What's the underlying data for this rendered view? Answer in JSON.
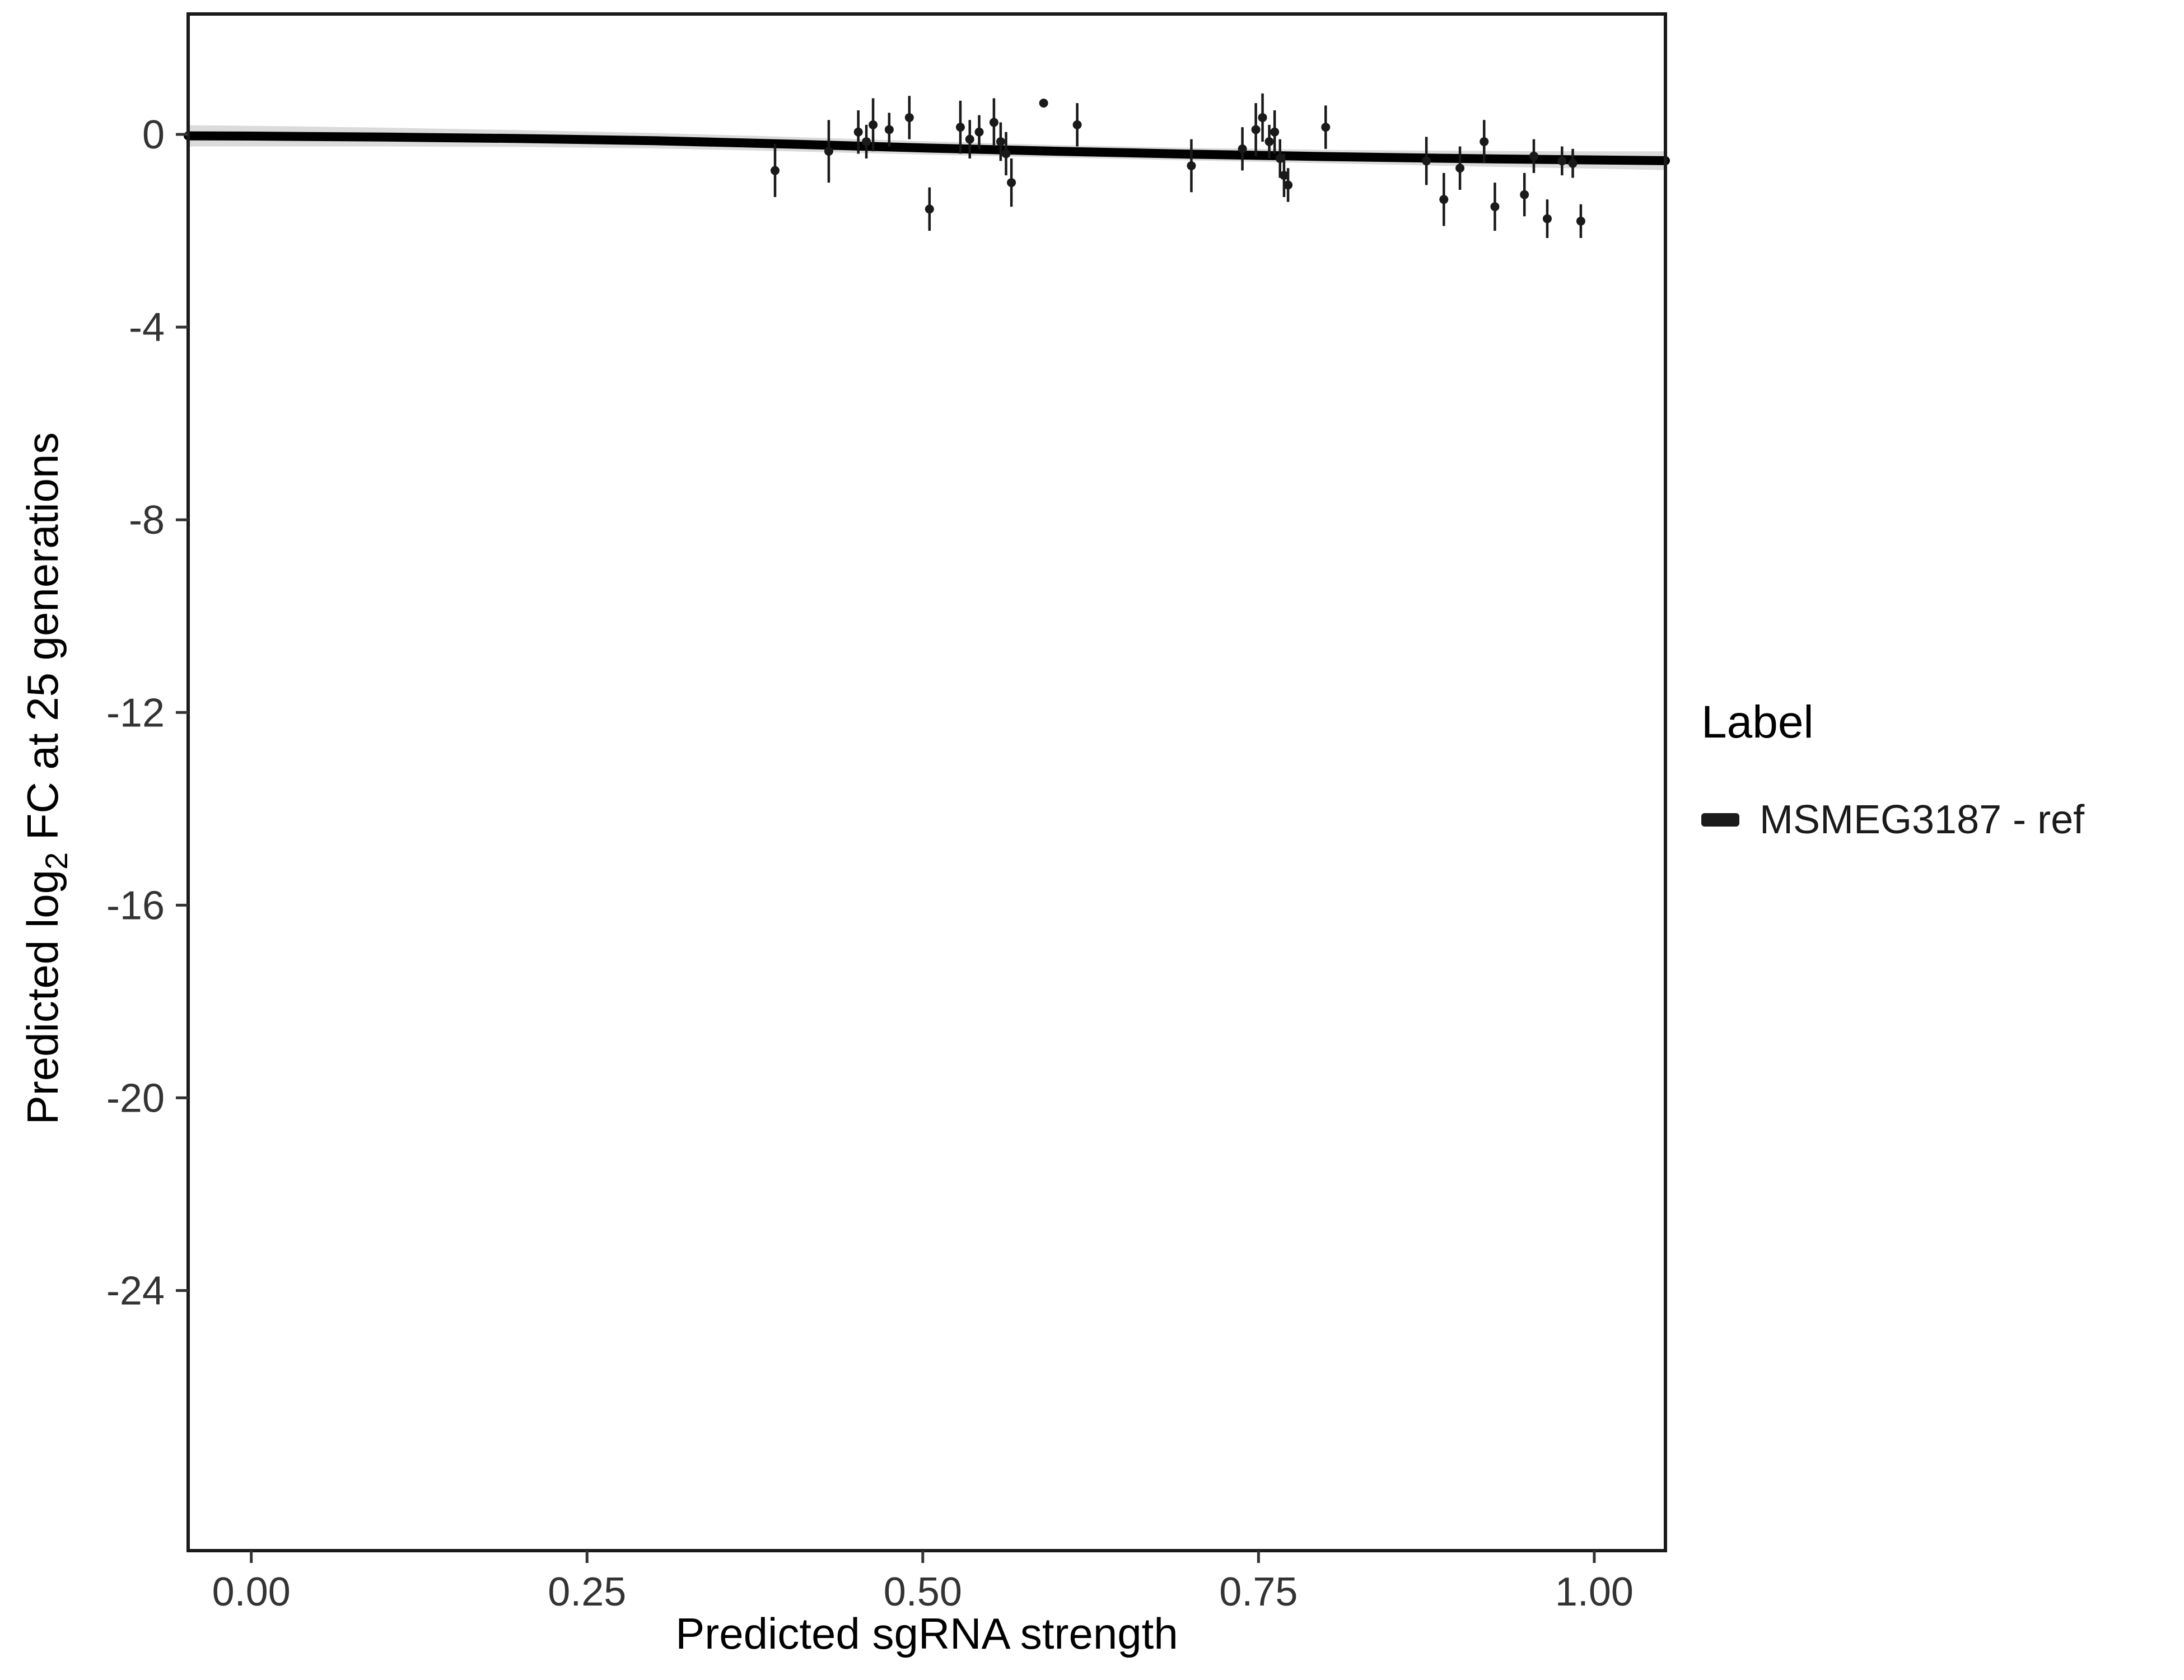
{
  "chart_data": {
    "type": "scatter",
    "title": "",
    "xlabel": "Predicted sgRNA strength",
    "ylabel": "Predicted log2 FC at 25 generations",
    "ylabel_parts": {
      "pre": "Predicted  log",
      "sub": "2",
      "post": " FC at 25 generations"
    },
    "xlim": [
      -0.047,
      1.053
    ],
    "ylim": [
      -29.4,
      2.5
    ],
    "x_ticks": [
      "0.00",
      "0.25",
      "0.50",
      "0.75",
      "1.00"
    ],
    "x_tick_values": [
      0,
      0.25,
      0.5,
      0.75,
      1
    ],
    "y_ticks": [
      "0",
      "-4",
      "-8",
      "-12",
      "-16",
      "-20",
      "-24"
    ],
    "y_tick_values": [
      0,
      -4,
      -8,
      -12,
      -16,
      -20,
      -24
    ],
    "grid": false,
    "background": "#ffffff",
    "panel_border_color": "#1a1a1a",
    "tick_color": "#333333",
    "point_color": "#1a1a1a",
    "legend": {
      "title": "Label",
      "position": "right",
      "entries": [
        {
          "label": "MSMEG3187 - ref",
          "swatch_color": "#1a1a1a"
        }
      ]
    },
    "series_name": "MSMEG3187 - ref",
    "points": [
      [
        0.39,
        -0.75,
        0.55
      ],
      [
        0.43,
        -0.35,
        0.65
      ],
      [
        0.452,
        0.05,
        0.45
      ],
      [
        0.458,
        -0.15,
        0.35
      ],
      [
        0.463,
        0.2,
        0.55
      ],
      [
        0.475,
        0.1,
        0.35
      ],
      [
        0.49,
        0.35,
        0.45
      ],
      [
        0.505,
        -1.55,
        0.45
      ],
      [
        0.528,
        0.15,
        0.55
      ],
      [
        0.535,
        -0.1,
        0.4
      ],
      [
        0.542,
        0.05,
        0.35
      ],
      [
        0.553,
        0.25,
        0.5
      ],
      [
        0.558,
        -0.15,
        0.4
      ],
      [
        0.562,
        -0.4,
        0.45
      ],
      [
        0.566,
        -1.0,
        0.5
      ],
      [
        0.59,
        0.65,
        0.08
      ],
      [
        0.615,
        0.2,
        0.45
      ],
      [
        0.7,
        -0.65,
        0.55
      ],
      [
        0.738,
        -0.3,
        0.45
      ],
      [
        0.748,
        0.1,
        0.55
      ],
      [
        0.753,
        0.35,
        0.5
      ],
      [
        0.758,
        -0.15,
        0.35
      ],
      [
        0.762,
        0.05,
        0.45
      ],
      [
        0.766,
        -0.5,
        0.4
      ],
      [
        0.769,
        -0.85,
        0.45
      ],
      [
        0.772,
        -1.05,
        0.35
      ],
      [
        0.8,
        0.15,
        0.45
      ],
      [
        0.875,
        -0.55,
        0.5
      ],
      [
        0.888,
        -1.35,
        0.55
      ],
      [
        0.9,
        -0.7,
        0.45
      ],
      [
        0.918,
        -0.15,
        0.45
      ],
      [
        0.926,
        -1.5,
        0.5
      ],
      [
        0.948,
        -1.25,
        0.45
      ],
      [
        0.955,
        -0.45,
        0.35
      ],
      [
        0.965,
        -1.75,
        0.4
      ],
      [
        0.976,
        -0.55,
        0.3
      ],
      [
        0.984,
        -0.6,
        0.3
      ],
      [
        0.99,
        -1.8,
        0.35
      ]
    ],
    "smooth": {
      "line_color": "#000000",
      "line_width": 16,
      "band_color": "#999999",
      "band_opacity": 0.35,
      "x": [
        -0.047,
        0.0,
        0.1,
        0.2,
        0.3,
        0.4,
        0.5,
        0.6,
        0.7,
        0.8,
        0.9,
        1.0,
        1.053
      ],
      "y": [
        -0.03,
        -0.035,
        -0.055,
        -0.085,
        -0.13,
        -0.2,
        -0.28,
        -0.35,
        -0.41,
        -0.46,
        -0.5,
        -0.53,
        -0.545
      ],
      "upper": [
        0.19,
        0.18,
        0.14,
        0.09,
        0.03,
        -0.05,
        -0.14,
        -0.22,
        -0.28,
        -0.32,
        -0.34,
        -0.35,
        -0.35
      ],
      "lower": [
        -0.25,
        -0.25,
        -0.25,
        -0.26,
        -0.29,
        -0.35,
        -0.42,
        -0.48,
        -0.54,
        -0.6,
        -0.66,
        -0.71,
        -0.74
      ]
    }
  }
}
